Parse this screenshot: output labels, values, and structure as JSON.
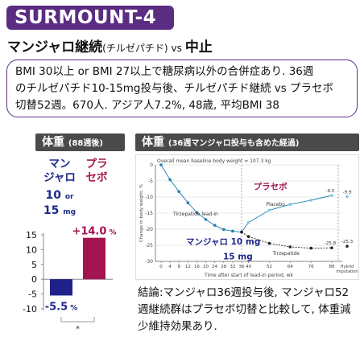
{
  "title": "SURMOUNT-4",
  "subtitle": {
    "main": "マンジャロ継続",
    "paren": "(チルゼパチド)",
    "vs": "vs",
    "stop": "中止"
  },
  "info": {
    "line1": "BMI 30以上 or BMI 27以上で糖尿病以外の合併症あり. 36週",
    "line2": "のチルゼパチド10-15mg投与後、チルゼパチド継続 vs プラセボ",
    "line3": "切替52週。670人. アジア人7.2%, 48歳, 平均BMI 38"
  },
  "left_panel": {
    "label": "体重",
    "label_small": "(88週後)",
    "manjaro_header_1": "マン",
    "manjaro_header_2": "ジャロ",
    "dose_1": "10",
    "dose_or": "or",
    "dose_2": "15",
    "dose_unit": "mg",
    "placebo_header_1": "プラ",
    "placebo_header_2": "セボ",
    "manjaro_label": "-5.5",
    "placebo_label": "+14.0",
    "pct": "%",
    "significance": "*"
  },
  "right_panel": {
    "label": "体重",
    "label_small": "(36週マンジャロ投与も含めた経過)",
    "figure_title": "Overall mean baseline body weight = 107.3 kg",
    "y_axis_label": "Change in body weight, %",
    "x_axis_label": "Time after start of lead-in period, wk",
    "lead_in_label": "Tirzepatide lead-in",
    "placebo_series_label": "Placebo",
    "tirz_series_label": "Tirzepatide",
    "placebo_overlay": "プラセボ",
    "manjaro_overlay_1": "マンジャロ 10 mg",
    "manjaro_overlay_2": "15 mg",
    "hybrid_label_1": "Hybrid",
    "hybrid_label_2": "imputation",
    "end_placebo": "-9.5",
    "end_tirz": "-25.8",
    "hybrid_placebo": "-9.9",
    "hybrid_tirz": "-25.3"
  },
  "conclusion": {
    "line1": "結論:マンジャロ36週投与後, マンジャロ52",
    "line2": "週継続群はプラセボ切替と比較して, 体重減",
    "line3": "少維持効果あり."
  },
  "chart_data": [
    {
      "type": "bar",
      "categories": [
        "マンジャロ 10 or 15mg",
        "プラセボ"
      ],
      "values": [
        -5.5,
        14.0
      ],
      "colors": [
        "#20208a",
        "#a31550"
      ],
      "ylim": [
        -10,
        15
      ],
      "yticks": [
        15,
        10,
        5,
        0,
        -5,
        -10
      ],
      "data_labels": [
        "-5.5%",
        "+14.0%"
      ],
      "annotation": "*"
    },
    {
      "type": "line",
      "title": "Overall mean baseline body weight = 107.3 kg",
      "xlabel": "Time after start of lead-in period, wk",
      "ylabel": "Change in body weight, %",
      "xticks": [
        0,
        4,
        8,
        12,
        16,
        20,
        24,
        28,
        32,
        36,
        40,
        52,
        64,
        76,
        88
      ],
      "yticks": [
        0,
        -5,
        -10,
        -15,
        -20,
        -25,
        -30
      ],
      "ylim": [
        -30,
        0
      ],
      "grid": true,
      "series": [
        {
          "name": "Tirzepatide lead-in",
          "x": [
            0,
            4,
            8,
            12,
            16,
            20,
            24,
            28,
            32,
            36
          ],
          "values": [
            0,
            -4.6,
            -8.3,
            -11.8,
            -14.8,
            -17.0,
            -18.8,
            -20.1,
            -20.6,
            -20.9
          ],
          "color": "#1f7fae"
        },
        {
          "name": "Placebo",
          "x": [
            36,
            40,
            52,
            64,
            76,
            88
          ],
          "values": [
            -20.9,
            -17.9,
            -14.1,
            -12.3,
            -11.0,
            -9.5
          ],
          "color": "#1f7fae"
        },
        {
          "name": "Tirzepatide",
          "x": [
            36,
            40,
            52,
            64,
            76,
            88
          ],
          "values": [
            -20.9,
            -22.3,
            -24.4,
            -25.5,
            -25.9,
            -25.8
          ],
          "color": "#2a2a2a"
        }
      ],
      "hybrid_imputation": {
        "Placebo": -9.9,
        "Tirzepatide": -25.3
      }
    }
  ]
}
